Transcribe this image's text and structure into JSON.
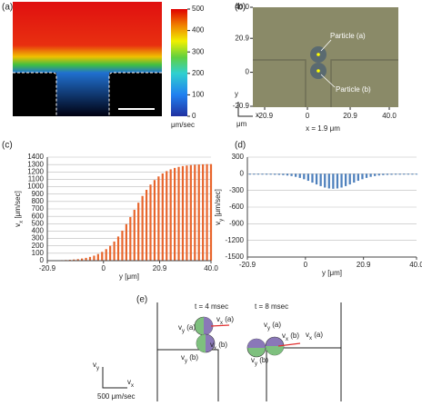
{
  "panel_labels": [
    "(a)",
    "(b)",
    "(c)",
    "(d)",
    "(e)"
  ],
  "colorbar": {
    "lim": [
      0,
      500
    ],
    "ticks": [
      0,
      100,
      200,
      300,
      400,
      500
    ],
    "label": "μm/sec"
  },
  "image_b": {
    "xlim": [
      -20.9,
      40.0
    ],
    "ylim": [
      -20.9,
      40.0
    ],
    "xticks": [
      -20.9,
      0,
      20.9,
      {
        "value": 40,
        "label": "40.0"
      }
    ],
    "yticks": [
      -20.9,
      0,
      20.9,
      {
        "value": 40,
        "label": "40.0"
      }
    ],
    "particles": [
      "Particle (a)",
      "Particle (b)"
    ],
    "caption": "x = 1.9 μm",
    "axis_labels": [
      "y",
      "x",
      "μm"
    ]
  },
  "chart_data": [
    {
      "type": "bar",
      "color": "#e8652c",
      "ylabel": [
        "v",
        "x",
        " [μm/sec]"
      ],
      "xlabel": "y [μm]",
      "xlim": [
        -20.9,
        40.0
      ],
      "xticks": [
        -20.9,
        0,
        20.9,
        {
          "value": 40,
          "label": "40.0"
        }
      ],
      "ylim": [
        0,
        1400
      ],
      "yticks": [
        0,
        100,
        200,
        300,
        400,
        500,
        600,
        700,
        800,
        900,
        1000,
        1100,
        1200,
        1300,
        1400
      ],
      "grid": true,
      "x": [
        -20,
        -18.5,
        -17,
        -15.5,
        -14,
        -12.5,
        -11,
        -9.5,
        -8,
        -6.5,
        -5,
        -3.5,
        -2,
        -0.5,
        1,
        2.5,
        4,
        5.5,
        7,
        8.5,
        10,
        11.5,
        13,
        14.5,
        16,
        17.5,
        19,
        20.5,
        22,
        23.5,
        25,
        26.5,
        28,
        29.5,
        31,
        32.5,
        34,
        35.5,
        37,
        38.5,
        40
      ],
      "values": [
        3,
        4,
        5,
        7,
        9,
        12,
        16,
        21,
        29,
        38,
        51,
        68,
        90,
        119,
        156,
        202,
        259,
        327,
        406,
        494,
        590,
        688,
        784,
        875,
        958,
        1029,
        1090,
        1139,
        1179,
        1211,
        1235,
        1254,
        1268,
        1279,
        1287,
        1292,
        1297,
        1300,
        1303,
        1305,
        1306
      ]
    },
    {
      "type": "bar",
      "color": "#4f81bd",
      "ylabel": [
        "v",
        "y",
        " [μm/sec]"
      ],
      "xlabel": "y [μm]",
      "xlim": [
        -20.9,
        40.0
      ],
      "xticks": [
        -20.9,
        0,
        20.9,
        {
          "value": 40,
          "label": "40.0"
        }
      ],
      "ylim": [
        -1500,
        300
      ],
      "yticks": [
        -1500,
        -1200,
        -900,
        -600,
        -300,
        0,
        300
      ],
      "grid": true,
      "x": [
        -20,
        -18.5,
        -17,
        -15.5,
        -14,
        -12.5,
        -11,
        -9.5,
        -8,
        -6.5,
        -5,
        -3.5,
        -2,
        -0.5,
        1,
        2.5,
        4,
        5.5,
        7,
        8.5,
        10,
        11.5,
        13,
        14.5,
        16,
        17.5,
        19,
        20.5,
        22,
        23.5,
        25,
        26.5,
        28,
        29.5,
        31,
        32.5,
        34,
        35.5,
        37,
        38.5,
        40
      ],
      "values": [
        -15,
        -15,
        -15,
        -15,
        -16,
        -16,
        -18,
        -20,
        -24,
        -31,
        -41,
        -55,
        -74,
        -98,
        -126,
        -159,
        -192,
        -222,
        -248,
        -264,
        -270,
        -264,
        -248,
        -222,
        -192,
        -159,
        -126,
        -98,
        -74,
        -55,
        -41,
        -31,
        -24,
        -20,
        -18,
        -16,
        -16,
        -15,
        -15,
        -15,
        -15
      ]
    }
  ],
  "diagram_e": {
    "times": [
      "t = 4 msec",
      "t = 8 msec"
    ],
    "labels": [
      [
        "v",
        "y",
        " (a)"
      ],
      [
        "v",
        "x",
        " (a)"
      ],
      [
        "v",
        "x",
        " (b)"
      ],
      [
        "v",
        "y",
        " (b)"
      ],
      [
        "v",
        "y",
        " (a)"
      ],
      [
        "v",
        "x",
        " (a)"
      ],
      [
        "v",
        "y",
        " (b)"
      ],
      [
        "v",
        "x",
        " (b)"
      ]
    ],
    "axes": [
      [
        "v",
        "y"
      ],
      [
        "v",
        "x"
      ]
    ],
    "scale": "500 μm/sec"
  }
}
